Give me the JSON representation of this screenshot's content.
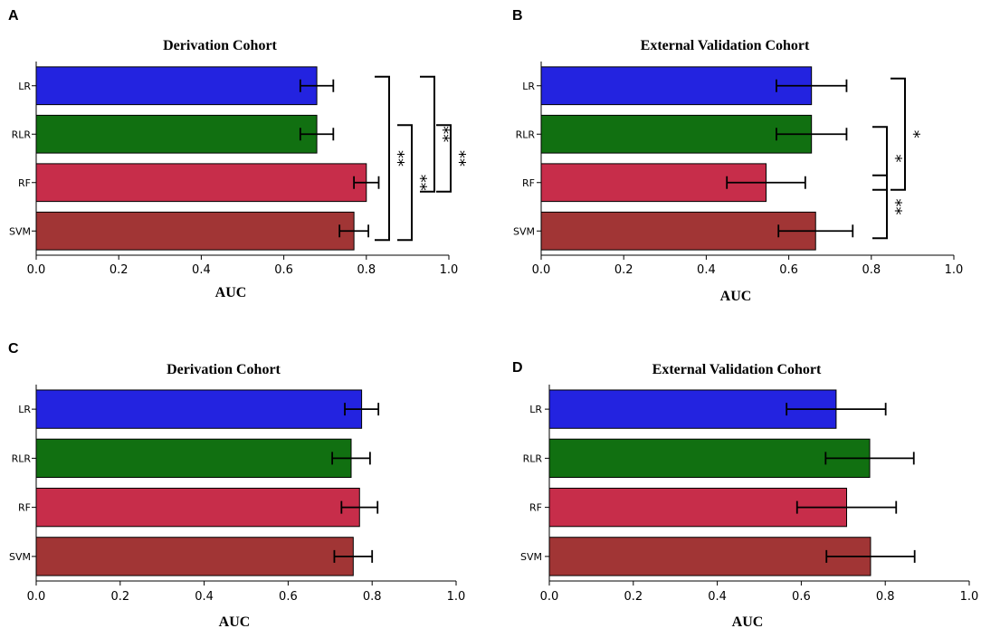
{
  "figure": {
    "colors": {
      "LR": "#2323e0",
      "RLR": "#117011",
      "RF": "#c72d4a",
      "SVM": "#a13535"
    }
  },
  "chart_data": [
    {
      "panel": "A",
      "type": "bar",
      "orientation": "horizontal",
      "title": "Derivation Cohort",
      "xlabel": "AUC",
      "ylabel": "",
      "xlim": [
        0,
        1.0
      ],
      "xticks": [
        "0.0",
        "0.2",
        "0.4",
        "0.6",
        "0.8",
        "1.0"
      ],
      "categories": [
        "LR",
        "RLR",
        "RF",
        "SVM"
      ],
      "values": [
        0.68,
        0.68,
        0.8,
        0.77
      ],
      "errors": [
        0.04,
        0.04,
        0.03,
        0.035
      ],
      "significance": [
        {
          "from": "LR",
          "to": "SVM",
          "label": "**"
        },
        {
          "from": "RLR",
          "to": "SVM",
          "label": "**"
        },
        {
          "from": "LR",
          "to": "RF",
          "label": "**"
        },
        {
          "from": "RLR",
          "to": "RF",
          "label": "**"
        }
      ]
    },
    {
      "panel": "B",
      "type": "bar",
      "orientation": "horizontal",
      "title": "External Validation Cohort",
      "xlabel": "AUC",
      "ylabel": "",
      "xlim": [
        0,
        1.0
      ],
      "xticks": [
        "0.0",
        "0.2",
        "0.4",
        "0.6",
        "0.8",
        "1.0"
      ],
      "categories": [
        "LR",
        "RLR",
        "RF",
        "SVM"
      ],
      "values": [
        0.655,
        0.655,
        0.545,
        0.665
      ],
      "errors": [
        0.085,
        0.085,
        0.095,
        0.09
      ],
      "significance": [
        {
          "from": "RLR",
          "to": "RF",
          "label": "*"
        },
        {
          "from": "LR",
          "to": "RF",
          "label": "*"
        },
        {
          "from": "RF",
          "to": "SVM",
          "label": "**"
        }
      ]
    },
    {
      "panel": "C",
      "type": "bar",
      "orientation": "horizontal",
      "title": "Derivation Cohort",
      "xlabel": "AUC",
      "ylabel": "",
      "xlim": [
        0,
        1.0
      ],
      "xticks": [
        "0.0",
        "0.2",
        "0.4",
        "0.6",
        "0.8",
        "1.0"
      ],
      "categories": [
        "LR",
        "RLR",
        "RF",
        "SVM"
      ],
      "values": [
        0.775,
        0.75,
        0.77,
        0.755
      ],
      "errors": [
        0.04,
        0.045,
        0.043,
        0.045
      ],
      "significance": []
    },
    {
      "panel": "D",
      "type": "bar",
      "orientation": "horizontal",
      "title": "External Validation Cohort",
      "xlabel": "AUC",
      "ylabel": "",
      "xlim": [
        0,
        1.0
      ],
      "xticks": [
        "0.0",
        "0.2",
        "0.4",
        "0.6",
        "0.8",
        "1.0"
      ],
      "categories": [
        "LR",
        "RLR",
        "RF",
        "SVM"
      ],
      "values": [
        0.683,
        0.763,
        0.708,
        0.765
      ],
      "errors": [
        0.118,
        0.105,
        0.118,
        0.105
      ],
      "significance": []
    }
  ]
}
